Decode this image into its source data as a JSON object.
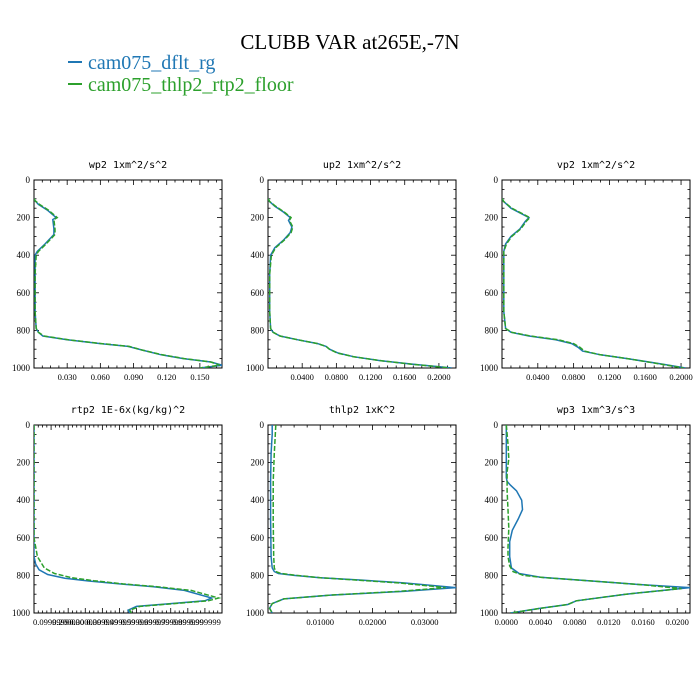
{
  "figure": {
    "title": "CLUBB VAR at265E,-7N"
  },
  "legend": [
    {
      "label": "cam075_dflt_rg",
      "color": "#1f77b4"
    },
    {
      "label": "cam075_thlp2_rtp2_floor",
      "color": "#2ca02c"
    }
  ],
  "chart_data": [
    {
      "type": "line",
      "title": "wp2  1xm^2/s^2",
      "ylim": [
        1000,
        0
      ],
      "xlim": [
        0,
        0.17
      ],
      "y_ticks": [
        "0",
        "200",
        "400",
        "600",
        "800",
        "1000"
      ],
      "x_tick_values": [
        0.03,
        0.06,
        0.09,
        0.12,
        0.15
      ],
      "x_tick_labels": [
        "0.030",
        "0.060",
        "0.090",
        "0.120",
        "0.150"
      ],
      "series": [
        {
          "name": "cam075_dflt_rg",
          "color": "#1f77b4",
          "x": [
            0.0,
            0.001,
            0.004,
            0.012,
            0.02,
            0.017,
            0.018,
            0.018,
            0.01,
            0.003,
            0.001,
            0.001,
            0.001,
            0.002,
            0.004,
            0.008,
            0.03,
            0.06,
            0.085,
            0.098,
            0.115,
            0.135,
            0.16,
            0.17,
            0.15
          ],
          "y": [
            100,
            110,
            130,
            160,
            200,
            210,
            260,
            290,
            340,
            380,
            400,
            500,
            700,
            790,
            810,
            830,
            850,
            870,
            885,
            905,
            930,
            950,
            968,
            985,
            1000
          ]
        },
        {
          "name": "cam075_thlp2_rtp2_floor",
          "color": "#2ca02c",
          "x": [
            0.0,
            0.001,
            0.005,
            0.013,
            0.021,
            0.018,
            0.019,
            0.019,
            0.011,
            0.004,
            0.002,
            0.001,
            0.001,
            0.002,
            0.004,
            0.009,
            0.031,
            0.061,
            0.086,
            0.098,
            0.116,
            0.136,
            0.16,
            0.168,
            0.15
          ],
          "y": [
            100,
            110,
            130,
            160,
            200,
            210,
            260,
            290,
            340,
            380,
            400,
            500,
            700,
            790,
            810,
            830,
            850,
            870,
            885,
            905,
            930,
            950,
            968,
            985,
            1000
          ]
        }
      ]
    },
    {
      "type": "line",
      "title": "up2  1xm^2/s^2",
      "ylim": [
        1000,
        0
      ],
      "xlim": [
        0,
        0.22
      ],
      "y_ticks": [
        "0",
        "200",
        "400",
        "600",
        "800",
        "1000"
      ],
      "x_tick_values": [
        0.04,
        0.08,
        0.12,
        0.16,
        0.2
      ],
      "x_tick_labels": [
        "0.0400",
        "0.0800",
        "0.1200",
        "0.1600",
        "0.2000"
      ],
      "series": [
        {
          "name": "cam075_dflt_rg",
          "color": "#1f77b4",
          "x": [
            0.0,
            0.002,
            0.008,
            0.018,
            0.026,
            0.024,
            0.028,
            0.026,
            0.018,
            0.008,
            0.003,
            0.002,
            0.002,
            0.003,
            0.006,
            0.014,
            0.035,
            0.058,
            0.068,
            0.072,
            0.082,
            0.1,
            0.13,
            0.17,
            0.205,
            0.215
          ],
          "y": [
            100,
            115,
            140,
            170,
            200,
            215,
            250,
            280,
            320,
            360,
            400,
            500,
            700,
            790,
            810,
            830,
            850,
            870,
            885,
            900,
            920,
            940,
            960,
            980,
            995,
            1000
          ]
        },
        {
          "name": "cam075_thlp2_rtp2_floor",
          "color": "#2ca02c",
          "x": [
            0.0,
            0.002,
            0.009,
            0.019,
            0.027,
            0.025,
            0.029,
            0.027,
            0.019,
            0.009,
            0.004,
            0.002,
            0.002,
            0.003,
            0.006,
            0.014,
            0.035,
            0.058,
            0.068,
            0.072,
            0.081,
            0.1,
            0.13,
            0.168,
            0.203,
            0.213
          ],
          "y": [
            100,
            115,
            140,
            170,
            200,
            215,
            250,
            280,
            320,
            360,
            400,
            500,
            700,
            790,
            810,
            830,
            850,
            870,
            885,
            900,
            920,
            940,
            960,
            980,
            995,
            1000
          ]
        }
      ]
    },
    {
      "type": "line",
      "title": "vp2  1xm^2/s^2",
      "ylim": [
        1000,
        0
      ],
      "xlim": [
        0,
        0.21
      ],
      "y_ticks": [
        "0",
        "200",
        "400",
        "600",
        "800",
        "1000"
      ],
      "x_tick_values": [
        0.04,
        0.08,
        0.12,
        0.16,
        0.2
      ],
      "x_tick_labels": [
        "0.0400",
        "0.0800",
        "0.1200",
        "0.1600",
        "0.2000"
      ],
      "series": [
        {
          "name": "cam075_dflt_rg",
          "color": "#1f77b4",
          "x": [
            0.0,
            0.002,
            0.01,
            0.022,
            0.03,
            0.026,
            0.02,
            0.01,
            0.004,
            0.002,
            0.002,
            0.002,
            0.004,
            0.01,
            0.03,
            0.06,
            0.078,
            0.085,
            0.09,
            0.11,
            0.14,
            0.18,
            0.205
          ],
          "y": [
            100,
            115,
            150,
            180,
            200,
            220,
            260,
            300,
            340,
            380,
            500,
            700,
            790,
            810,
            830,
            850,
            870,
            890,
            910,
            930,
            950,
            980,
            1000
          ]
        },
        {
          "name": "cam075_thlp2_rtp2_floor",
          "color": "#2ca02c",
          "x": [
            0.0,
            0.002,
            0.011,
            0.023,
            0.031,
            0.027,
            0.021,
            0.011,
            0.005,
            0.002,
            0.002,
            0.002,
            0.004,
            0.011,
            0.032,
            0.063,
            0.08,
            0.087,
            0.092,
            0.11,
            0.14,
            0.178,
            0.203
          ],
          "y": [
            100,
            115,
            150,
            180,
            200,
            220,
            260,
            300,
            340,
            380,
            500,
            700,
            790,
            810,
            830,
            850,
            870,
            890,
            910,
            930,
            950,
            980,
            1000
          ]
        }
      ]
    },
    {
      "type": "line",
      "title": "rtp2  1E-6x(kg/kg)^2",
      "ylim": [
        1000,
        0
      ],
      "xlim": [
        0,
        1.1
      ],
      "y_ticks": [
        "0",
        "200",
        "400",
        "600",
        "800",
        "1000"
      ],
      "x_tick_values": [
        0.1,
        0.2,
        0.3,
        0.4,
        0.5,
        0.6,
        0.7,
        0.8,
        0.9,
        1.0
      ],
      "x_tick_labels": [
        "0.0999999",
        "0.200000",
        "0.300000",
        "0.399999",
        "0.499999",
        "0.599999",
        "0.699999",
        "0.799999",
        "0.899999",
        "0.999999"
      ],
      "series": [
        {
          "name": "cam075_dflt_rg",
          "color": "#1f77b4",
          "x": [
            0.0,
            0.0,
            0.01,
            0.03,
            0.08,
            0.18,
            0.32,
            0.5,
            0.7,
            0.88,
            1.04,
            1.0,
            0.8,
            0.6,
            0.55,
            0.56
          ],
          "y": [
            0,
            700,
            740,
            770,
            795,
            815,
            830,
            845,
            860,
            880,
            920,
            935,
            950,
            965,
            985,
            1000
          ]
        },
        {
          "name": "cam075_thlp2_rtp2_floor",
          "color": "#2ca02c",
          "x": [
            0.0,
            0.0,
            0.02,
            0.06,
            0.12,
            0.22,
            0.35,
            0.52,
            0.72,
            0.92,
            1.08,
            1.02,
            0.82,
            0.62,
            0.56,
            0.57
          ],
          "y": [
            0,
            600,
            700,
            760,
            790,
            812,
            828,
            845,
            860,
            880,
            920,
            935,
            950,
            965,
            985,
            1000
          ]
        }
      ]
    },
    {
      "type": "line",
      "title": "thlp2  1xK^2",
      "ylim": [
        1000,
        0
      ],
      "xlim": [
        0,
        0.036
      ],
      "y_ticks": [
        "0",
        "200",
        "400",
        "600",
        "800",
        "1000"
      ],
      "x_tick_values": [
        0.01,
        0.02,
        0.03
      ],
      "x_tick_labels": [
        "0.01000",
        "0.02000",
        "0.03000"
      ],
      "series": [
        {
          "name": "cam075_dflt_rg",
          "color": "#1f77b4",
          "x": [
            0.0008,
            0.0008,
            0.0006,
            0.0005,
            0.0005,
            0.0006,
            0.0008,
            0.0012,
            0.002,
            0.005,
            0.01,
            0.018,
            0.026,
            0.036,
            0.026,
            0.012,
            0.003,
            0.0008,
            0.0003,
            0.0008
          ],
          "y": [
            0,
            50,
            150,
            300,
            500,
            700,
            760,
            780,
            790,
            800,
            812,
            825,
            840,
            865,
            885,
            905,
            925,
            950,
            975,
            1000
          ]
        },
        {
          "name": "cam075_thlp2_rtp2_floor",
          "color": "#2ca02c",
          "x": [
            0.0015,
            0.0014,
            0.0012,
            0.001,
            0.001,
            0.0011,
            0.0012,
            0.0015,
            0.0025,
            0.0055,
            0.01,
            0.017,
            0.025,
            0.034,
            0.025,
            0.012,
            0.003,
            0.0008,
            0.0003,
            0.0008
          ],
          "y": [
            0,
            50,
            150,
            300,
            500,
            700,
            760,
            780,
            790,
            800,
            812,
            825,
            840,
            865,
            885,
            905,
            925,
            950,
            975,
            1000
          ]
        }
      ]
    },
    {
      "type": "line",
      "title": "wp3  1xm^3/s^3",
      "ylim": [
        1000,
        0
      ],
      "xlim": [
        -0.0005,
        0.0215
      ],
      "y_ticks": [
        "0",
        "200",
        "400",
        "600",
        "800",
        "1000"
      ],
      "x_tick_values": [
        0.0,
        0.004,
        0.008,
        0.012,
        0.016,
        0.02
      ],
      "x_tick_labels": [
        "0.0000",
        "0.0040",
        "0.0080",
        "0.0120",
        "0.0160",
        "0.0200"
      ],
      "series": [
        {
          "name": "cam075_dflt_rg",
          "color": "#1f77b4",
          "x": [
            0.0,
            0.0,
            0.0001,
            0.0005,
            0.0012,
            0.0018,
            0.0019,
            0.0014,
            0.0007,
            0.0004,
            0.0004,
            0.0006,
            0.0015,
            0.004,
            0.01,
            0.016,
            0.0215,
            0.014,
            0.0082,
            0.0072,
            0.004,
            0.0005
          ],
          "y": [
            0,
            280,
            300,
            320,
            350,
            400,
            450,
            500,
            560,
            620,
            700,
            760,
            790,
            810,
            830,
            850,
            865,
            900,
            935,
            955,
            975,
            1000
          ]
        },
        {
          "name": "cam075_thlp2_rtp2_floor",
          "color": "#2ca02c",
          "x": [
            0.0,
            0.0002,
            0.0003,
            0.0001,
            0.0001,
            0.0002,
            0.0003,
            0.0002,
            0.0002,
            0.0004,
            0.0008,
            0.002,
            0.0045,
            0.01,
            0.016,
            0.0205,
            0.014,
            0.0082,
            0.0072,
            0.004,
            0.0005
          ],
          "y": [
            0,
            100,
            180,
            250,
            350,
            450,
            550,
            650,
            700,
            750,
            780,
            800,
            812,
            830,
            850,
            870,
            900,
            935,
            955,
            975,
            1000
          ]
        }
      ]
    }
  ]
}
